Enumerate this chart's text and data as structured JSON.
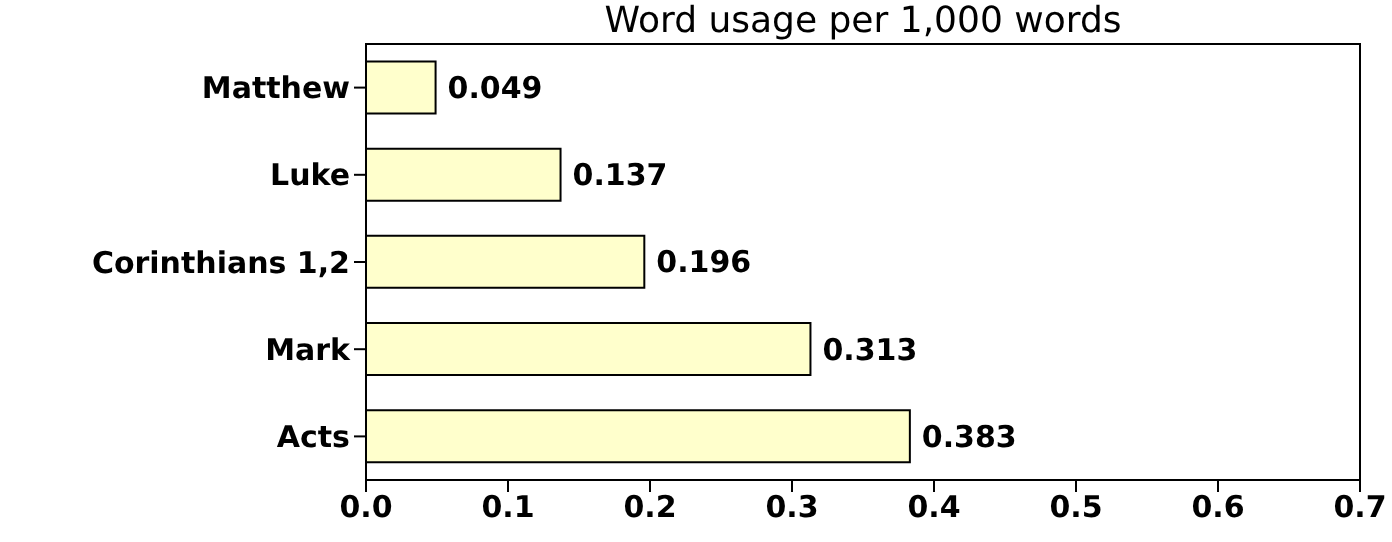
{
  "chart_data": {
    "type": "bar",
    "orientation": "horizontal",
    "title": "Word usage per 1,000 words",
    "categories": [
      "Matthew",
      "Luke",
      "Corinthians 1,2",
      "Mark",
      "Acts"
    ],
    "values": [
      0.049,
      0.137,
      0.196,
      0.313,
      0.383
    ],
    "color": "#ffffcc",
    "xlim": [
      0,
      0.7
    ],
    "xticks": [
      {
        "value": 0,
        "label": "0.0"
      },
      {
        "value": 0.1,
        "label": "0.1"
      },
      {
        "value": 0.2,
        "label": "0.2"
      },
      {
        "value": 0.3,
        "label": "0.3"
      },
      {
        "value": 0.4,
        "label": "0.4"
      },
      {
        "value": 0.5,
        "label": "0.5"
      },
      {
        "value": 0.6,
        "label": "0.6"
      },
      {
        "value": 0.7,
        "label": "0.7"
      }
    ],
    "data_labels": true
  }
}
